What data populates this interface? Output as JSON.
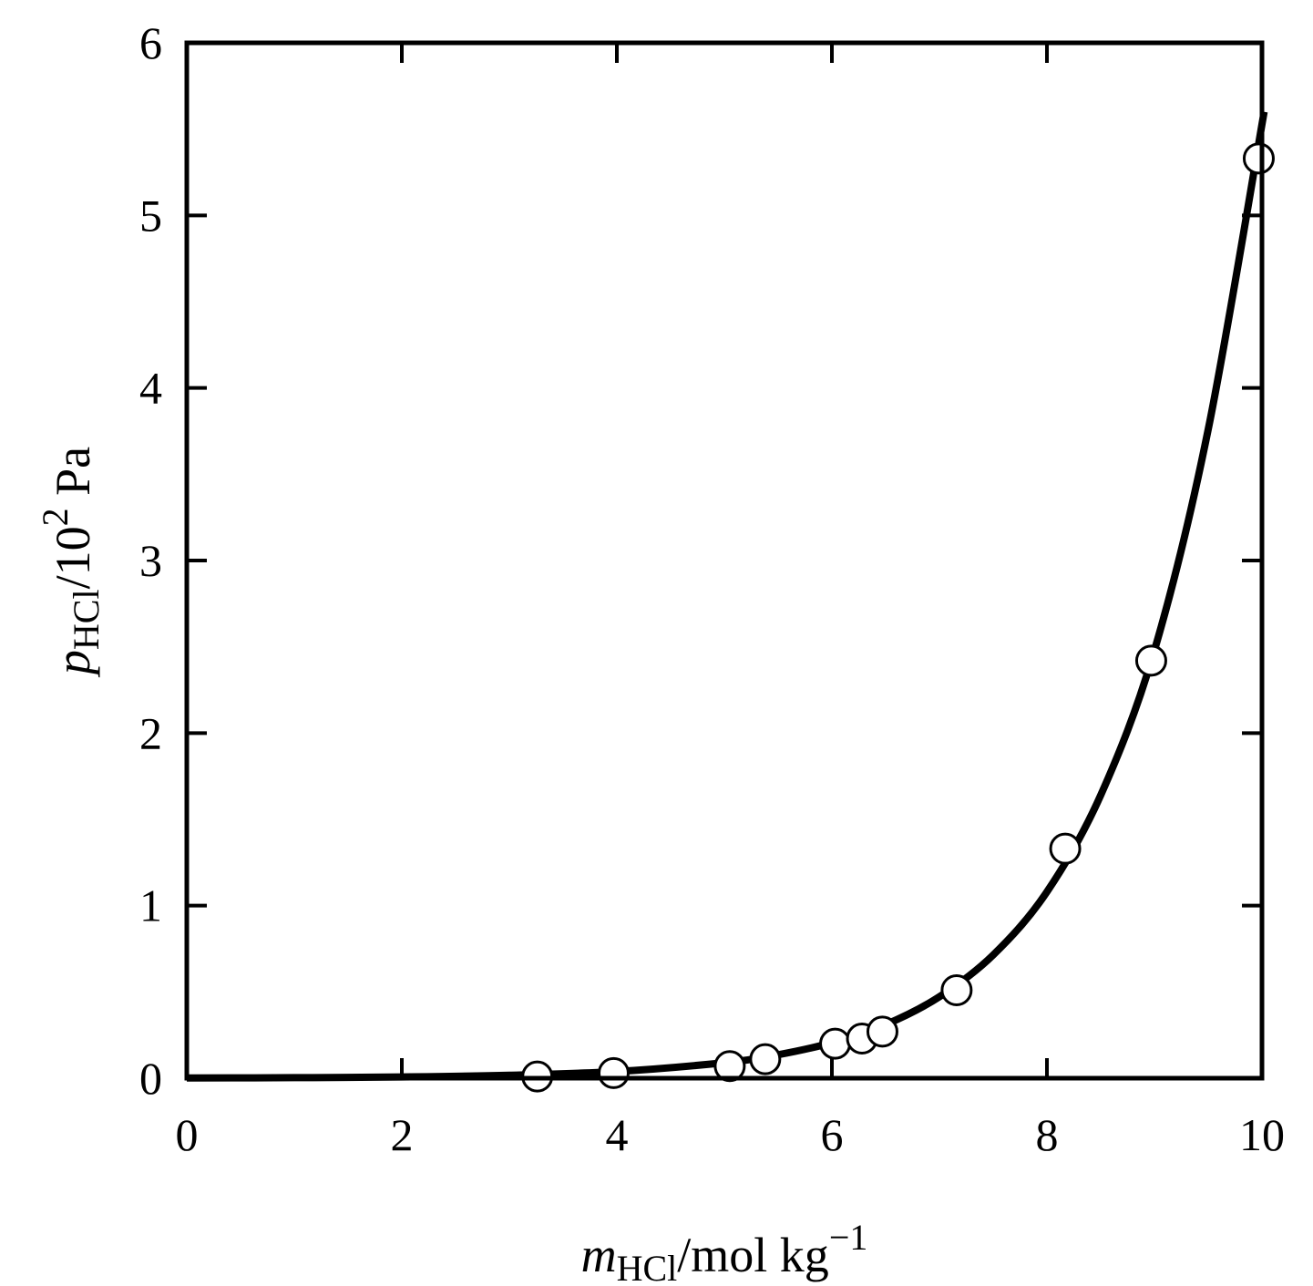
{
  "chart_data": {
    "type": "scatter",
    "xlabel": {
      "main": "m",
      "sub": "HCl",
      "unit": "/mol kg",
      "sup": "−1"
    },
    "ylabel": {
      "main": "p",
      "sub": "HCl",
      "unit": "/10",
      "sup": "2",
      "tail": " Pa"
    },
    "xlim": [
      0,
      10
    ],
    "ylim": [
      0,
      6
    ],
    "xticks": [
      "0",
      "2",
      "4",
      "6",
      "8",
      "10"
    ],
    "yticks": [
      "0",
      "1",
      "2",
      "3",
      "4",
      "5",
      "6"
    ],
    "grid": false,
    "series": [
      {
        "kind": "points",
        "marker": "open-circle",
        "x": [
          3.26,
          3.97,
          5.05,
          5.38,
          6.03,
          6.28,
          6.47,
          7.16,
          8.17,
          8.97,
          9.97
        ],
        "y": [
          0.01,
          0.03,
          0.07,
          0.11,
          0.2,
          0.23,
          0.27,
          0.51,
          1.33,
          2.42,
          5.33
        ]
      },
      {
        "kind": "curve",
        "x": [
          0,
          1,
          2,
          3,
          4,
          5,
          5.5,
          6,
          6.5,
          7,
          7.5,
          8,
          8.5,
          9,
          9.5,
          10.02
        ],
        "y": [
          0.001,
          0.003,
          0.007,
          0.017,
          0.039,
          0.09,
          0.136,
          0.206,
          0.311,
          0.472,
          0.714,
          1.08,
          1.64,
          2.48,
          3.76,
          5.6
        ]
      }
    ],
    "colors": {
      "line": "#000000",
      "marker_fill": "#ffffff",
      "marker_edge": "#000000"
    }
  }
}
